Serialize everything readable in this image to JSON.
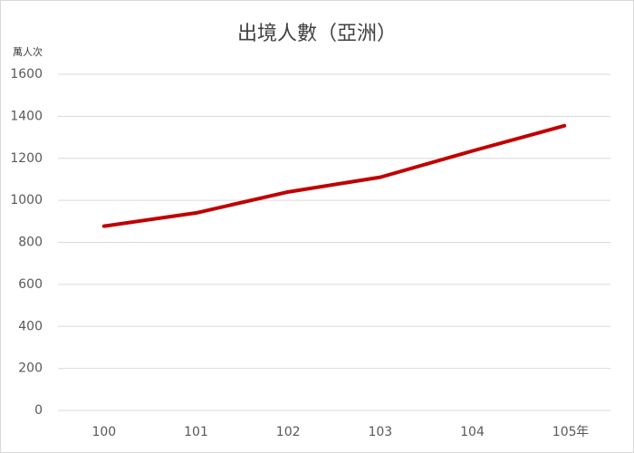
{
  "chart_data": {
    "type": "line",
    "title": "出境人數（亞洲）",
    "y_label": "萬人次",
    "x_label": "年",
    "categories": [
      "100",
      "101",
      "102",
      "103",
      "104",
      "105"
    ],
    "series": [
      {
        "name": "出境人數",
        "color": "#c00000",
        "values": [
          877,
          940,
          1040,
          1110,
          1235,
          1355
        ]
      }
    ],
    "ylim": [
      0,
      1600
    ],
    "yticks": [
      0,
      200,
      400,
      600,
      800,
      1000,
      1200,
      1400,
      1600
    ],
    "grid": true
  }
}
